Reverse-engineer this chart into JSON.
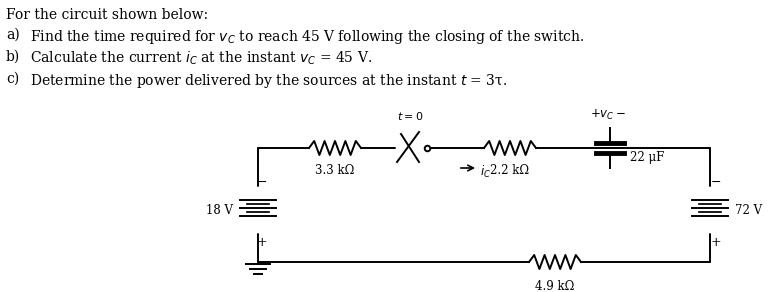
{
  "title_text": "For the circuit shown below:",
  "items": [
    [
      "a)",
      "Find the time required for $v_C$ to reach 45 V following the closing of the switch."
    ],
    [
      "b)",
      "Calculate the current $i_C$ at the instant $v_C$ = 45 V."
    ],
    [
      "c)",
      "Determine the power delivered by the sources at the instant $t$ = 3τ."
    ]
  ],
  "bg_color": "#ffffff",
  "circuit": {
    "left_source_label": "18 V",
    "right_source_label": "72 V",
    "r1_label": "3.3 kΩ",
    "r2_label": "2.2 kΩ",
    "r3_label": "4.9 kΩ",
    "cap_label": "22 μF",
    "switch_label": "t = 0"
  }
}
